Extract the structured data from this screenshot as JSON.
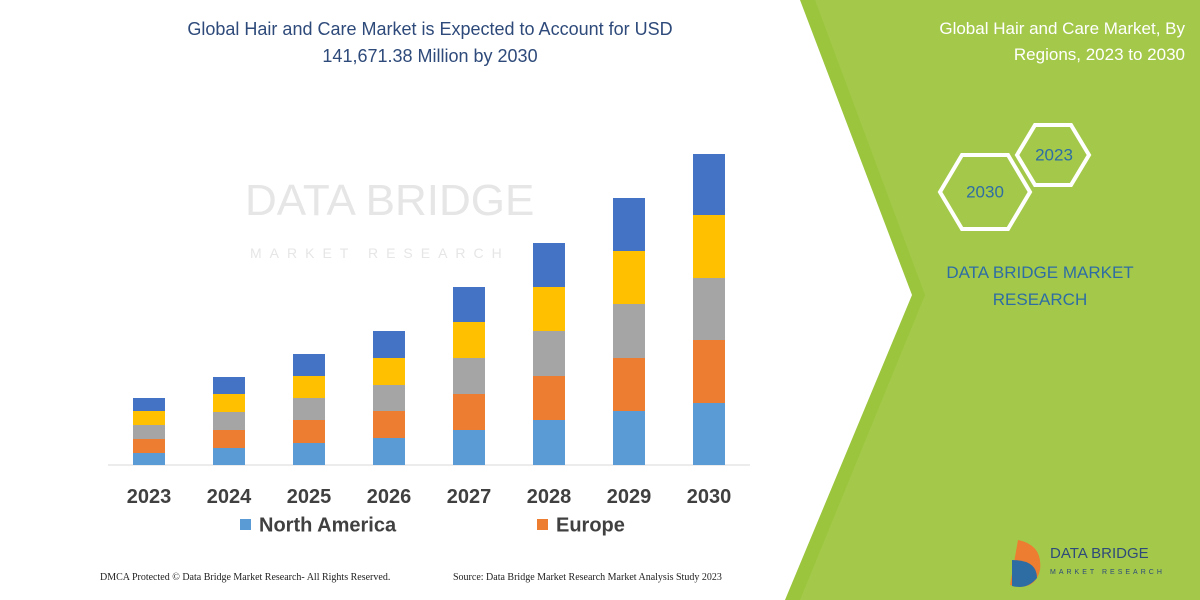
{
  "title": "Global Hair and Care Market is Expected to Account for USD 141,671.38 Million by 2030",
  "panel": {
    "title": "Global Hair and Care Market, By Regions, 2023 to 2030",
    "hexagons": [
      "2023",
      "2030"
    ],
    "brand": "DATA BRIDGE MARKET RESEARCH"
  },
  "logo": {
    "name": "DATA BRIDGE",
    "tagline": "MARKET RESEARCH"
  },
  "footer": {
    "rights": "DMCA Protected © Data Bridge Market Research- All Rights Reserved.",
    "source": "Source: Data Bridge Market Research Market Analysis Study 2023"
  },
  "chart_data": {
    "type": "stacked-bar",
    "categories": [
      "2023",
      "2024",
      "2025",
      "2026",
      "2027",
      "2028",
      "2029",
      "2030"
    ],
    "series": [
      {
        "name": "North America",
        "color": "#5b9bd5",
        "values": [
          12,
          17,
          22,
          27,
          35,
          45,
          54,
          62
        ]
      },
      {
        "name": "Europe",
        "color": "#ed7d31",
        "values": [
          14,
          18,
          23,
          27,
          36,
          44,
          53,
          63
        ]
      },
      {
        "color": "#a5a5a5",
        "values": [
          14,
          18,
          22,
          26,
          36,
          45,
          54,
          62
        ]
      },
      {
        "color": "#ffc000",
        "values": [
          14,
          18,
          22,
          27,
          36,
          44,
          53,
          63
        ]
      },
      {
        "color": "#4472c4",
        "values": [
          13,
          17,
          22,
          27,
          35,
          44,
          53,
          61
        ]
      }
    ]
  }
}
